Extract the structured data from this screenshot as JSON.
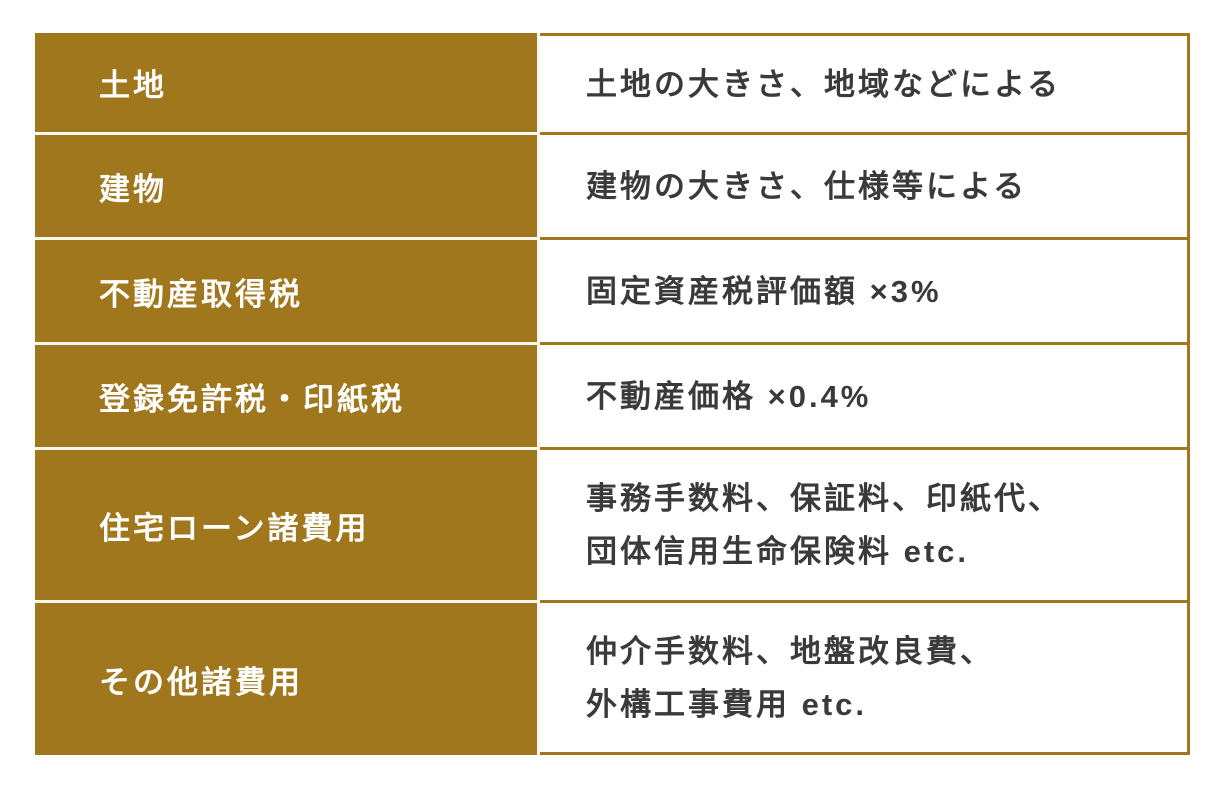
{
  "table": {
    "rows": [
      {
        "label": "土地",
        "value_lines": [
          "土地の大きさ、地域などによる"
        ]
      },
      {
        "label": "建物",
        "value_lines": [
          "建物の大きさ、仕様等による"
        ]
      },
      {
        "label": "不動産取得税",
        "value_lines": [
          "固定資産税評価額 ×3%"
        ]
      },
      {
        "label": "登録免許税・印紙税",
        "value_lines": [
          "不動産価格 ×0.4%"
        ]
      },
      {
        "label": "住宅ローン諸費用",
        "value_lines": [
          "事務手数料、保証料、印紙代、",
          "団体信用生命保険料 etc."
        ]
      },
      {
        "label": "その他諸費用",
        "value_lines": [
          "仲介手数料、地盤改良費、",
          "外構工事費用 etc."
        ]
      }
    ],
    "colors": {
      "header_bg": "#A0771C",
      "header_text": "#FFFFFF",
      "value_text": "#3A3A3A",
      "gold_border": "#A0771C",
      "light_divider": "#FAF7EE",
      "page_bg": "#FFFFFF"
    }
  }
}
